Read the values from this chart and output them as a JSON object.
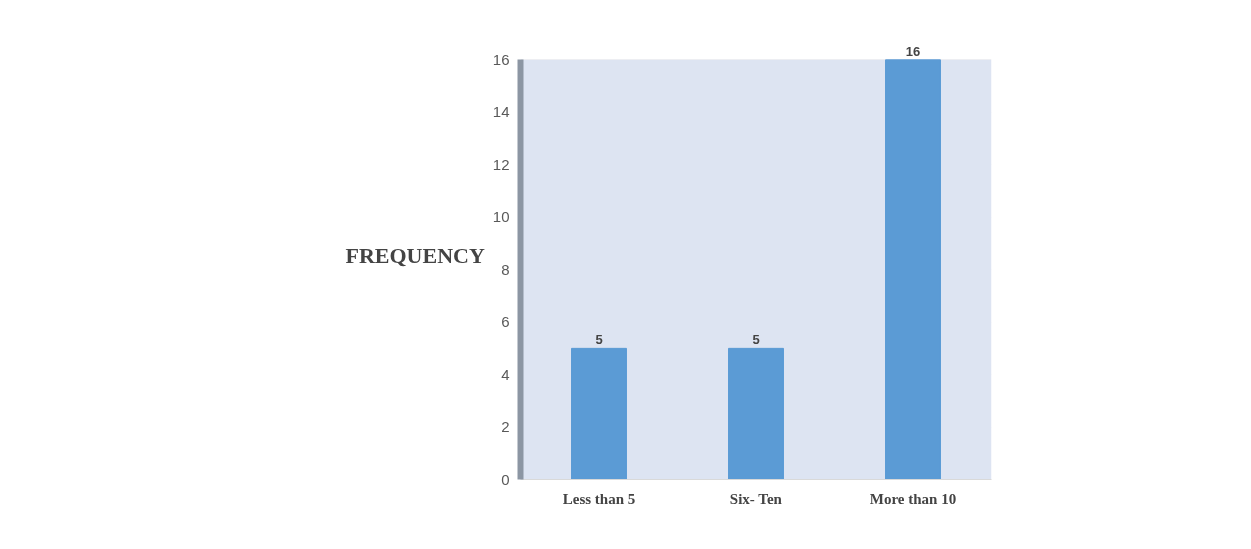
{
  "chart_data": {
    "type": "bar",
    "ylabel": "FREQUENCY",
    "categories": [
      "Less than 5",
      "Six- Ten",
      "More than 10"
    ],
    "values": [
      5,
      5,
      16
    ],
    "color": "#5b9bd5",
    "ylim": [
      0,
      16
    ],
    "yticks": [
      0,
      2,
      4,
      6,
      8,
      10,
      12,
      14,
      16
    ],
    "grid": "y",
    "data_labels": true
  }
}
